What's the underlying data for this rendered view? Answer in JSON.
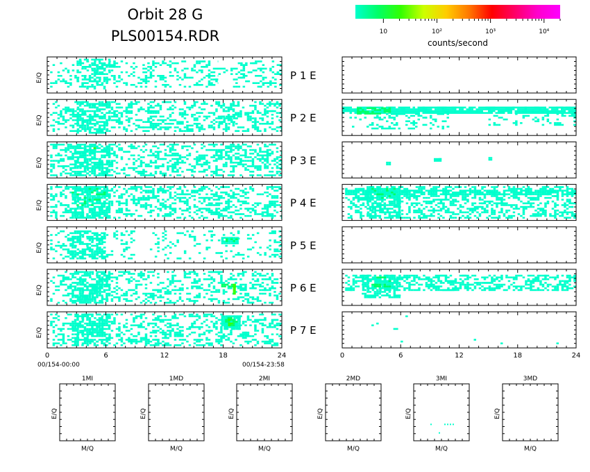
{
  "header": {
    "title_line1": "Orbit  28  G",
    "title_line2": "PLS00154.RDR"
  },
  "colorbar": {
    "colors": [
      "#00ffcc",
      "#00ff66",
      "#33ff00",
      "#ccff00",
      "#ffcc00",
      "#ff7700",
      "#ff0000",
      "#ff0066",
      "#ff00cc",
      "#ff00ff"
    ],
    "tick_labels": [
      "10",
      "10²",
      "10³",
      "10⁴"
    ],
    "tick_values": [
      10,
      100,
      1000,
      10000
    ],
    "range": [
      3,
      20000
    ],
    "scale": "log",
    "label": "counts/second"
  },
  "chart_data": [
    {
      "type": "heatmap",
      "name": "time-spectrograms",
      "ylabel": "E/Q",
      "xlim": [
        0,
        24
      ],
      "xticks": [
        "0",
        "6",
        "12",
        "18",
        "24"
      ],
      "left_start_label": "00/154-00:00",
      "left_end_label": "00/154-23:58",
      "colors": {
        "low": "#00ffcc",
        "mid": "#00ff66",
        "high": "#33ff00",
        "peak": "#ccff00"
      },
      "rows": [
        {
          "label": "P    1    E",
          "left": [
            {
              "x": [
                0.3,
                17.5
              ],
              "y": [
                0.15,
                0.9
              ],
              "density": 0.22,
              "level": "low"
            },
            {
              "x": [
                3.0,
                6.5
              ],
              "y": [
                0.1,
                0.95
              ],
              "density": 0.35,
              "level": "low"
            },
            {
              "x": [
                19.0,
                24.0
              ],
              "y": [
                0.15,
                0.9
              ],
              "density": 0.25,
              "level": "low"
            },
            {
              "x": [
                17.5,
                19.0
              ],
              "y": [
                0.5,
                0.7
              ],
              "density": 0.35,
              "level": "low"
            }
          ],
          "right": []
        },
        {
          "label": "P    2    E",
          "left": [
            {
              "x": [
                0.3,
                24.0
              ],
              "y": [
                0.1,
                0.95
              ],
              "density": 0.28,
              "level": "low"
            },
            {
              "x": [
                3.0,
                6.5
              ],
              "y": [
                0.05,
                0.95
              ],
              "density": 0.45,
              "level": "low"
            },
            {
              "x": [
                17.5,
                19.5
              ],
              "y": [
                0.3,
                0.55
              ],
              "density": 0.4,
              "level": "low"
            }
          ],
          "right": [
            {
              "x": [
                0.0,
                24.0
              ],
              "y": [
                0.62,
                0.8
              ],
              "density": 0.9,
              "level": "low"
            },
            {
              "x": [
                1.5,
                5.0
              ],
              "y": [
                0.62,
                0.78
              ],
              "density": 0.55,
              "level": "mid"
            },
            {
              "x": [
                0.5,
                11.0
              ],
              "y": [
                0.2,
                0.62
              ],
              "density": 0.18,
              "level": "low"
            },
            {
              "x": [
                15.0,
                24.0
              ],
              "y": [
                0.3,
                0.62
              ],
              "density": 0.18,
              "level": "low"
            }
          ]
        },
        {
          "label": "P    3    E",
          "left": [
            {
              "x": [
                0.3,
                24.0
              ],
              "y": [
                0.05,
                0.95
              ],
              "density": 0.32,
              "level": "low"
            },
            {
              "x": [
                2.5,
                6.5
              ],
              "y": [
                0.05,
                0.95
              ],
              "density": 0.5,
              "level": "low"
            },
            {
              "x": [
                2.0,
                6.0
              ],
              "y": [
                0.6,
                0.9
              ],
              "density": 0.04,
              "level": "high"
            }
          ],
          "right": [
            {
              "x": [
                4.5,
                5.0
              ],
              "y": [
                0.35,
                0.45
              ],
              "density": 1.0,
              "level": "low"
            },
            {
              "x": [
                9.4,
                10.2
              ],
              "y": [
                0.45,
                0.55
              ],
              "density": 1.0,
              "level": "low"
            },
            {
              "x": [
                15.0,
                15.4
              ],
              "y": [
                0.5,
                0.58
              ],
              "density": 1.0,
              "level": "low"
            }
          ]
        },
        {
          "label": "P    4    E",
          "left": [
            {
              "x": [
                0.3,
                24.0
              ],
              "y": [
                0.05,
                0.95
              ],
              "density": 0.3,
              "level": "low"
            },
            {
              "x": [
                2.5,
                6.5
              ],
              "y": [
                0.05,
                0.95
              ],
              "density": 0.55,
              "level": "low"
            },
            {
              "x": [
                2.5,
                6.0
              ],
              "y": [
                0.4,
                0.9
              ],
              "density": 0.08,
              "level": "mid"
            }
          ],
          "right": [
            {
              "x": [
                0.3,
                24.0
              ],
              "y": [
                0.05,
                0.95
              ],
              "density": 0.35,
              "level": "low"
            },
            {
              "x": [
                0.3,
                24.0
              ],
              "y": [
                0.7,
                0.85
              ],
              "density": 0.7,
              "level": "low"
            },
            {
              "x": [
                2.5,
                6.0
              ],
              "y": [
                0.05,
                0.95
              ],
              "density": 0.55,
              "level": "low"
            },
            {
              "x": [
                3.0,
                5.5
              ],
              "y": [
                0.6,
                0.9
              ],
              "density": 0.2,
              "level": "mid"
            }
          ]
        },
        {
          "label": "P    5    E",
          "left": [
            {
              "x": [
                0.3,
                9.0
              ],
              "y": [
                0.1,
                0.9
              ],
              "density": 0.2,
              "level": "low"
            },
            {
              "x": [
                2.5,
                6.0
              ],
              "y": [
                0.1,
                0.9
              ],
              "density": 0.38,
              "level": "low"
            },
            {
              "x": [
                10.5,
                24.0
              ],
              "y": [
                0.1,
                0.9
              ],
              "density": 0.15,
              "level": "low"
            },
            {
              "x": [
                17.8,
                19.6
              ],
              "y": [
                0.55,
                0.72
              ],
              "density": 0.9,
              "level": "low"
            },
            {
              "x": [
                18.0,
                19.5
              ],
              "y": [
                0.6,
                0.68
              ],
              "density": 0.6,
              "level": "mid"
            }
          ],
          "right": []
        },
        {
          "label": "P    6    E",
          "left": [
            {
              "x": [
                0.3,
                24.0
              ],
              "y": [
                0.05,
                0.95
              ],
              "density": 0.24,
              "level": "low"
            },
            {
              "x": [
                2.5,
                6.5
              ],
              "y": [
                0.05,
                0.95
              ],
              "density": 0.45,
              "level": "low"
            },
            {
              "x": [
                17.8,
                19.3
              ],
              "y": [
                0.5,
                0.6
              ],
              "density": 0.9,
              "level": "mid"
            },
            {
              "x": [
                19.0,
                19.3
              ],
              "y": [
                0.3,
                0.6
              ],
              "density": 0.9,
              "level": "high"
            }
          ],
          "right": [
            {
              "x": [
                0.3,
                24.0
              ],
              "y": [
                0.4,
                0.85
              ],
              "density": 0.42,
              "level": "low"
            },
            {
              "x": [
                2.0,
                6.0
              ],
              "y": [
                0.2,
                0.85
              ],
              "density": 0.55,
              "level": "low"
            },
            {
              "x": [
                3.0,
                5.0
              ],
              "y": [
                0.5,
                0.8
              ],
              "density": 0.15,
              "level": "mid"
            }
          ]
        },
        {
          "label": "P    7    E",
          "left": [
            {
              "x": [
                0.3,
                24.0
              ],
              "y": [
                0.05,
                0.95
              ],
              "density": 0.28,
              "level": "low"
            },
            {
              "x": [
                2.5,
                6.5
              ],
              "y": [
                0.05,
                0.95
              ],
              "density": 0.45,
              "level": "low"
            },
            {
              "x": [
                17.8,
                19.8
              ],
              "y": [
                0.5,
                0.9
              ],
              "density": 0.92,
              "level": "low"
            },
            {
              "x": [
                18.2,
                19.5
              ],
              "y": [
                0.6,
                0.85
              ],
              "density": 0.5,
              "level": "mid"
            },
            {
              "x": [
                18.5,
                19.3
              ],
              "y": [
                0.62,
                0.8
              ],
              "density": 0.25,
              "level": "high"
            }
          ],
          "right": [
            {
              "x": [
                2.5,
                7.0
              ],
              "y": [
                0.15,
                0.9
              ],
              "density": 0.03,
              "level": "low"
            },
            {
              "x": [
                12.0,
                24.0
              ],
              "y": [
                0.1,
                0.6
              ],
              "density": 0.012,
              "level": "low"
            }
          ]
        }
      ]
    },
    {
      "type": "heatmap",
      "name": "mass-spectra",
      "xlabel": "M/Q",
      "ylabel": "E/Q",
      "panels": [
        {
          "title": "1MI",
          "points": []
        },
        {
          "title": "1MD",
          "points": []
        },
        {
          "title": "2MI",
          "points": []
        },
        {
          "title": "2MD",
          "points": []
        },
        {
          "title": "3MI",
          "points": [
            [
              0.3,
              0.3
            ],
            [
              0.55,
              0.3
            ],
            [
              0.6,
              0.3
            ],
            [
              0.65,
              0.3
            ],
            [
              0.7,
              0.3
            ],
            [
              0.45,
              0.15
            ]
          ]
        },
        {
          "title": "3MD",
          "points": []
        }
      ]
    }
  ]
}
